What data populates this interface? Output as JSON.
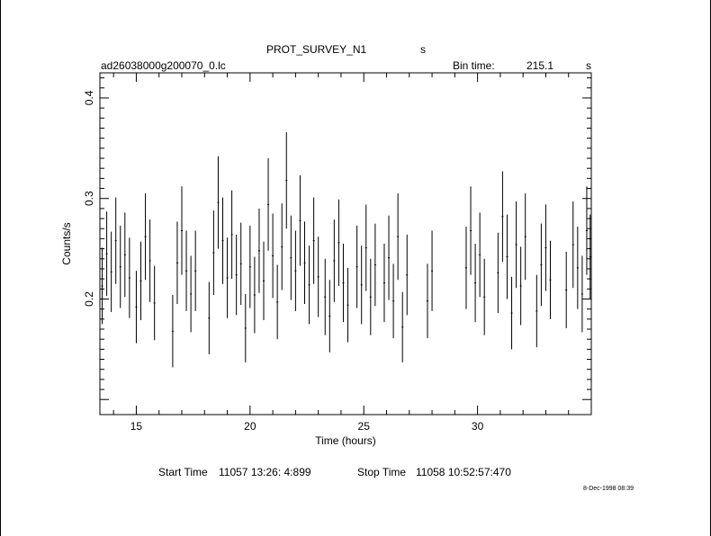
{
  "header": {
    "title": "PROT_SURVEY_N1",
    "title_unit": "s",
    "filename": "ad26038000g200070_0.lc",
    "bin_label": "Bin time:",
    "bin_value": "215.1",
    "bin_unit": "s"
  },
  "footer": {
    "start_label": "Start Time",
    "start_value": "11057 13:26: 4:899",
    "stop_label": "Stop Time",
    "stop_value": "11058 10:52:57:470",
    "date_stamp": "8-Dec-1998 08:39"
  },
  "chart_data": {
    "type": "scatter",
    "title": "PROT_SURVEY_N1",
    "xlabel": "Time (hours)",
    "ylabel": "Counts/s",
    "xlim": [
      13.4,
      35.0
    ],
    "ylim": [
      0.085,
      0.425
    ],
    "xticks": [
      "15",
      "20",
      "25",
      "30"
    ],
    "yticks": [
      "0.2",
      "0.3",
      "0.4"
    ],
    "grid": false,
    "colors": {
      "ink": "#000000",
      "background": "#ffffff"
    },
    "series": [
      {
        "points": [
          {
            "x": 13.5,
            "y": 0.213,
            "err": 0.038
          },
          {
            "x": 13.7,
            "y": 0.245,
            "err": 0.042
          },
          {
            "x": 13.9,
            "y": 0.227,
            "err": 0.04
          },
          {
            "x": 14.1,
            "y": 0.258,
            "err": 0.043
          },
          {
            "x": 14.3,
            "y": 0.232,
            "err": 0.041
          },
          {
            "x": 14.5,
            "y": 0.244,
            "err": 0.042
          },
          {
            "x": 14.7,
            "y": 0.221,
            "err": 0.04
          },
          {
            "x": 15.0,
            "y": 0.192,
            "err": 0.036
          },
          {
            "x": 15.2,
            "y": 0.218,
            "err": 0.039
          },
          {
            "x": 15.4,
            "y": 0.262,
            "err": 0.043
          },
          {
            "x": 15.6,
            "y": 0.238,
            "err": 0.041
          },
          {
            "x": 15.8,
            "y": 0.196,
            "err": 0.037
          },
          {
            "x": 16.6,
            "y": 0.168,
            "err": 0.036
          },
          {
            "x": 16.8,
            "y": 0.236,
            "err": 0.041
          },
          {
            "x": 17.0,
            "y": 0.268,
            "err": 0.044
          },
          {
            "x": 17.2,
            "y": 0.228,
            "err": 0.04
          },
          {
            "x": 17.4,
            "y": 0.205,
            "err": 0.038
          },
          {
            "x": 17.6,
            "y": 0.228,
            "err": 0.04
          },
          {
            "x": 18.2,
            "y": 0.181,
            "err": 0.036
          },
          {
            "x": 18.4,
            "y": 0.246,
            "err": 0.042
          },
          {
            "x": 18.6,
            "y": 0.296,
            "err": 0.046
          },
          {
            "x": 18.8,
            "y": 0.258,
            "err": 0.043
          },
          {
            "x": 19.0,
            "y": 0.221,
            "err": 0.04
          },
          {
            "x": 19.2,
            "y": 0.264,
            "err": 0.044
          },
          {
            "x": 19.4,
            "y": 0.224,
            "err": 0.04
          },
          {
            "x": 19.6,
            "y": 0.235,
            "err": 0.041
          },
          {
            "x": 19.8,
            "y": 0.171,
            "err": 0.034
          },
          {
            "x": 20.0,
            "y": 0.232,
            "err": 0.041
          },
          {
            "x": 20.2,
            "y": 0.204,
            "err": 0.038
          },
          {
            "x": 20.4,
            "y": 0.248,
            "err": 0.042
          },
          {
            "x": 20.6,
            "y": 0.218,
            "err": 0.039
          },
          {
            "x": 20.8,
            "y": 0.294,
            "err": 0.046
          },
          {
            "x": 21.0,
            "y": 0.243,
            "err": 0.042
          },
          {
            "x": 21.2,
            "y": 0.197,
            "err": 0.037
          },
          {
            "x": 21.4,
            "y": 0.252,
            "err": 0.043
          },
          {
            "x": 21.6,
            "y": 0.318,
            "err": 0.048
          },
          {
            "x": 21.8,
            "y": 0.241,
            "err": 0.042
          },
          {
            "x": 22.0,
            "y": 0.228,
            "err": 0.04
          },
          {
            "x": 22.2,
            "y": 0.278,
            "err": 0.045
          },
          {
            "x": 22.4,
            "y": 0.236,
            "err": 0.041
          },
          {
            "x": 22.6,
            "y": 0.214,
            "err": 0.039
          },
          {
            "x": 22.8,
            "y": 0.258,
            "err": 0.043
          },
          {
            "x": 23.0,
            "y": 0.222,
            "err": 0.04
          },
          {
            "x": 23.3,
            "y": 0.202,
            "err": 0.038
          },
          {
            "x": 23.5,
            "y": 0.183,
            "err": 0.036
          },
          {
            "x": 23.7,
            "y": 0.238,
            "err": 0.041
          },
          {
            "x": 23.9,
            "y": 0.256,
            "err": 0.043
          },
          {
            "x": 24.1,
            "y": 0.216,
            "err": 0.039
          },
          {
            "x": 24.3,
            "y": 0.194,
            "err": 0.037
          },
          {
            "x": 24.7,
            "y": 0.232,
            "err": 0.041
          },
          {
            "x": 24.9,
            "y": 0.214,
            "err": 0.039
          },
          {
            "x": 25.1,
            "y": 0.251,
            "err": 0.043
          },
          {
            "x": 25.3,
            "y": 0.202,
            "err": 0.038
          },
          {
            "x": 25.5,
            "y": 0.234,
            "err": 0.041
          },
          {
            "x": 25.9,
            "y": 0.216,
            "err": 0.039
          },
          {
            "x": 26.1,
            "y": 0.241,
            "err": 0.042
          },
          {
            "x": 26.3,
            "y": 0.198,
            "err": 0.037
          },
          {
            "x": 26.5,
            "y": 0.262,
            "err": 0.043
          },
          {
            "x": 26.7,
            "y": 0.172,
            "err": 0.035
          },
          {
            "x": 26.9,
            "y": 0.224,
            "err": 0.04
          },
          {
            "x": 27.8,
            "y": 0.198,
            "err": 0.037
          },
          {
            "x": 28.0,
            "y": 0.228,
            "err": 0.04
          },
          {
            "x": 29.5,
            "y": 0.231,
            "err": 0.041
          },
          {
            "x": 29.7,
            "y": 0.268,
            "err": 0.044
          },
          {
            "x": 29.9,
            "y": 0.216,
            "err": 0.039
          },
          {
            "x": 30.1,
            "y": 0.244,
            "err": 0.042
          },
          {
            "x": 30.3,
            "y": 0.202,
            "err": 0.038
          },
          {
            "x": 30.9,
            "y": 0.226,
            "err": 0.04
          },
          {
            "x": 31.1,
            "y": 0.282,
            "err": 0.045
          },
          {
            "x": 31.3,
            "y": 0.242,
            "err": 0.042
          },
          {
            "x": 31.5,
            "y": 0.186,
            "err": 0.036
          },
          {
            "x": 31.7,
            "y": 0.254,
            "err": 0.043
          },
          {
            "x": 31.9,
            "y": 0.213,
            "err": 0.039
          },
          {
            "x": 32.1,
            "y": 0.262,
            "err": 0.043
          },
          {
            "x": 32.6,
            "y": 0.188,
            "err": 0.036
          },
          {
            "x": 32.8,
            "y": 0.234,
            "err": 0.041
          },
          {
            "x": 33.0,
            "y": 0.251,
            "err": 0.043
          },
          {
            "x": 33.2,
            "y": 0.219,
            "err": 0.039
          },
          {
            "x": 33.9,
            "y": 0.209,
            "err": 0.038
          },
          {
            "x": 34.2,
            "y": 0.254,
            "err": 0.043
          },
          {
            "x": 34.4,
            "y": 0.231,
            "err": 0.041
          },
          {
            "x": 34.6,
            "y": 0.205,
            "err": 0.038
          },
          {
            "x": 34.8,
            "y": 0.268,
            "err": 0.044
          },
          {
            "x": 34.95,
            "y": 0.242,
            "err": 0.042
          }
        ]
      }
    ]
  }
}
